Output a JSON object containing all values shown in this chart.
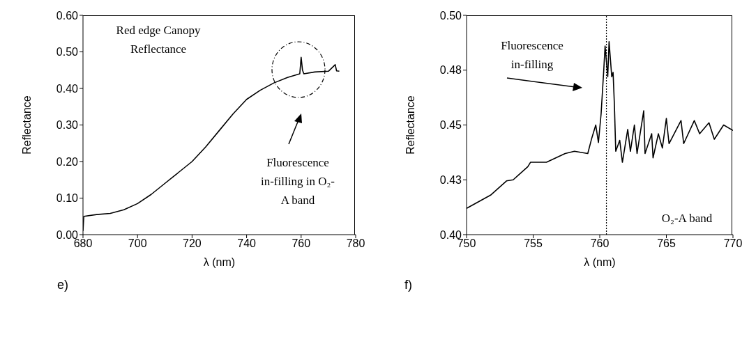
{
  "chart_data": [
    {
      "type": "line",
      "xlabel": "λ (nm)",
      "ylabel": "Reflectance",
      "xlim": [
        680,
        780
      ],
      "xticks": [
        680,
        700,
        720,
        740,
        760,
        780
      ],
      "ylim": [
        0,
        0.6
      ],
      "yticks": [
        {
          "value": 0,
          "label": "0.00"
        },
        {
          "value": 0.1,
          "label": "0.10"
        },
        {
          "value": 0.2,
          "label": "0.20"
        },
        {
          "value": 0.3,
          "label": "0.30"
        },
        {
          "value": 0.4,
          "label": "0.40"
        },
        {
          "value": 0.5,
          "label": "0.50"
        },
        {
          "value": 0.6,
          "label": "0.60"
        }
      ],
      "grid": false,
      "legend": false,
      "marker": "none",
      "line_style": "solid",
      "series": [
        {
          "color": "#000000",
          "x": [
            680,
            680.3,
            685,
            690,
            695,
            700,
            705,
            710,
            715,
            720,
            725,
            730,
            735,
            740,
            745,
            750,
            755,
            759.5,
            760,
            760.5,
            761,
            765,
            770,
            772.5,
            773,
            774
          ],
          "values": [
            0.01,
            0.05,
            0.055,
            0.058,
            0.068,
            0.085,
            0.11,
            0.14,
            0.17,
            0.2,
            0.24,
            0.285,
            0.33,
            0.37,
            0.395,
            0.415,
            0.43,
            0.44,
            0.485,
            0.45,
            0.44,
            0.445,
            0.447,
            0.465,
            0.448,
            0.447
          ]
        }
      ],
      "annotations": [
        "Red edge Canopy Reflectance",
        "Fluorescence in-filling in O₂-A band",
        "e)"
      ]
    },
    {
      "type": "line",
      "xlabel": "λ (nm)",
      "ylabel": "Reflectance",
      "xlim": [
        750,
        770
      ],
      "xticks": [
        750,
        755,
        760,
        765,
        770
      ],
      "ylim": [
        0.4,
        0.5
      ],
      "yticks": [
        {
          "value": 0.4,
          "label": "0.40"
        },
        {
          "value": 0.425,
          "label": "0.43"
        },
        {
          "value": 0.45,
          "label": "0.45"
        },
        {
          "value": 0.475,
          "label": "0.48"
        },
        {
          "value": 0.5,
          "label": "0.50"
        }
      ],
      "grid": false,
      "legend": false,
      "marker": "none",
      "line_style": "solid",
      "series": [
        {
          "color": "#000000",
          "x": [
            750,
            751.8,
            753,
            753.5,
            754.6,
            754.8,
            756,
            757.4,
            758.1,
            759.1,
            759.4,
            759.7,
            759.9,
            760.1,
            760.3,
            760.4,
            760.6,
            760.7,
            760.9,
            761,
            761.1,
            761.2,
            761.5,
            761.7,
            762.1,
            762.3,
            762.6,
            762.8,
            763.3,
            763.4,
            763.9,
            764,
            764.4,
            764.7,
            765,
            765.2,
            766.1,
            766.3,
            767.1,
            767.5,
            768.2,
            768.6,
            769.3,
            770
          ],
          "values": [
            0.412,
            0.418,
            0.4245,
            0.425,
            0.431,
            0.433,
            0.433,
            0.437,
            0.438,
            0.437,
            0.444,
            0.45,
            0.442,
            0.455,
            0.475,
            0.486,
            0.472,
            0.488,
            0.472,
            0.474,
            0.459,
            0.438,
            0.443,
            0.433,
            0.448,
            0.438,
            0.45,
            0.437,
            0.4565,
            0.437,
            0.446,
            0.435,
            0.446,
            0.4395,
            0.453,
            0.4415,
            0.452,
            0.4415,
            0.452,
            0.446,
            0.451,
            0.4435,
            0.45,
            0.4475
          ]
        }
      ],
      "ref_lines": [
        {
          "axis": "x",
          "value": 760.5,
          "color": "#000000",
          "line_style": "dotted"
        }
      ],
      "annotations": [
        "Fluorescence in-filling",
        "O₂-A band",
        "f)"
      ]
    }
  ]
}
